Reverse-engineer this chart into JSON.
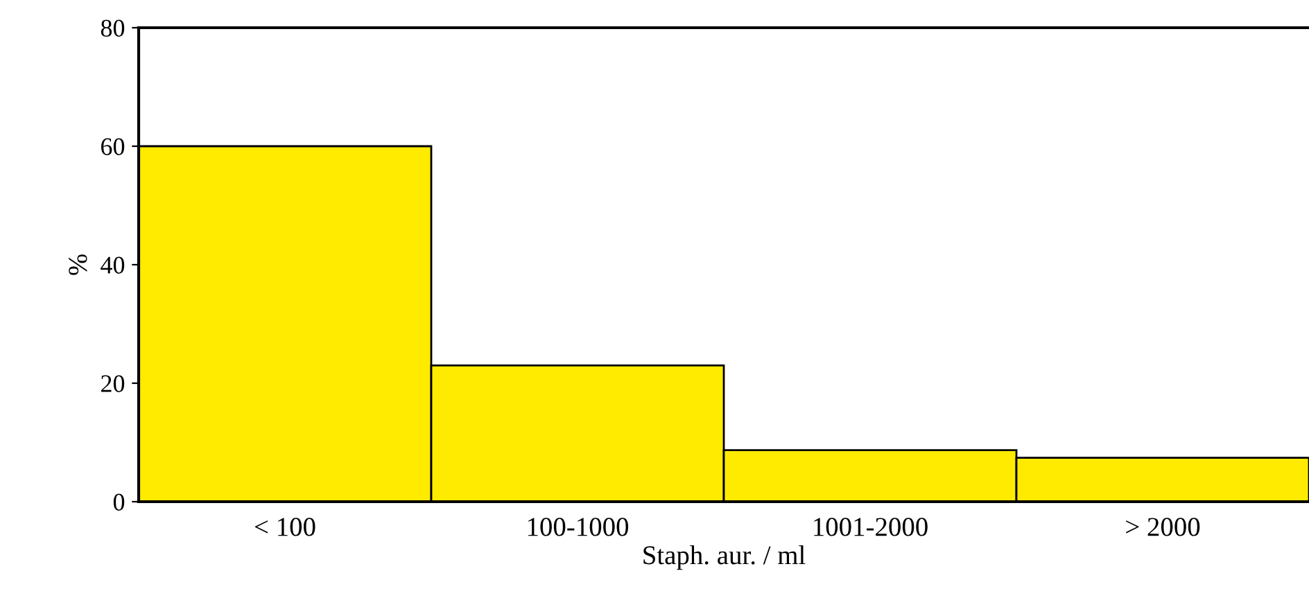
{
  "chart_data": {
    "type": "bar",
    "xlabel": "Staph. aur. / ml",
    "ylabel": "%",
    "categories": [
      "< 100",
      "100-1000",
      "1001-2000",
      "> 2000"
    ],
    "values": [
      60,
      23,
      8.7,
      7.4
    ],
    "color": "#ffeb00",
    "ylim": [
      0,
      80
    ],
    "yticks": [
      0,
      20,
      40,
      60,
      80
    ],
    "grid": false
  }
}
